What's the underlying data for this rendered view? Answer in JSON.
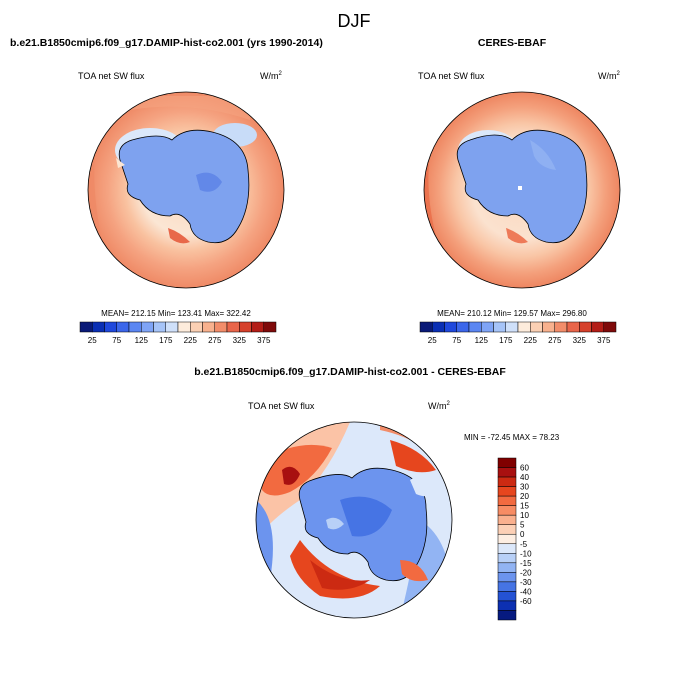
{
  "page": {
    "title": "DJF"
  },
  "chart_data": [
    {
      "type": "heatmap",
      "subtitle": "b.e21.B1850cmip6.f09_g17.DAMIP-hist-co2.001 (yrs 1990-2014)",
      "left_label": "TOA net SW flux",
      "units": "W/m",
      "units_sup": "2",
      "stats": {
        "mean": "212.15",
        "min": "123.41",
        "max": "322.42"
      },
      "stats_text": "MEAN= 212.15  Min= 123.41  Max= 322.42",
      "colorbar": {
        "orientation": "horizontal",
        "tick_labels": [
          "25",
          "75",
          "125",
          "175",
          "225",
          "275",
          "325",
          "375"
        ],
        "colors": [
          "#0a1a78",
          "#0a2fb4",
          "#1f48dc",
          "#3b66ea",
          "#5b86f2",
          "#7fa4f6",
          "#a6c4f8",
          "#cfe0fa",
          "#fdecdc",
          "#fbd0b4",
          "#f8b18e",
          "#f28d6a",
          "#e9654a",
          "#d6412c",
          "#b31d17",
          "#7f0a0a"
        ]
      },
      "projection": "south-polar-stereographic"
    },
    {
      "type": "heatmap",
      "subtitle": "CERES-EBAF",
      "left_label": "TOA net SW flux",
      "units": "W/m",
      "units_sup": "2",
      "stats": {
        "mean": "210.12",
        "min": "129.57",
        "max": "296.80"
      },
      "stats_text": "MEAN= 210.12  Min= 129.57  Max= 296.80",
      "colorbar": {
        "orientation": "horizontal",
        "tick_labels": [
          "25",
          "75",
          "125",
          "175",
          "225",
          "275",
          "325",
          "375"
        ],
        "colors": [
          "#0a1a78",
          "#0a2fb4",
          "#1f48dc",
          "#3b66ea",
          "#5b86f2",
          "#7fa4f6",
          "#a6c4f8",
          "#cfe0fa",
          "#fdecdc",
          "#fbd0b4",
          "#f8b18e",
          "#f28d6a",
          "#e9654a",
          "#d6412c",
          "#b31d17",
          "#7f0a0a"
        ]
      },
      "projection": "south-polar-stereographic"
    },
    {
      "type": "heatmap",
      "subtitle": "b.e21.B1850cmip6.f09_g17.DAMIP-hist-co2.001 - CERES-EBAF",
      "left_label": "TOA net SW flux",
      "units": "W/m",
      "units_sup": "2",
      "stats": {
        "min": "-72.45",
        "max": "78.23"
      },
      "stats_text": "MIN = -72.45 MAX =  78.23",
      "colorbar": {
        "orientation": "vertical",
        "tick_labels": [
          "60",
          "40",
          "30",
          "20",
          "15",
          "10",
          "5",
          "0",
          "-5",
          "-10",
          "-15",
          "-20",
          "-30",
          "-40",
          "-60"
        ],
        "colors": [
          "#800000",
          "#a81010",
          "#cc2a12",
          "#e6461e",
          "#f26a40",
          "#f78c64",
          "#fab08e",
          "#fcd0b6",
          "#fdeee2",
          "#dce8fa",
          "#b8d0f7",
          "#92b4f3",
          "#6c94ee",
          "#4674e4",
          "#2452d4",
          "#0c30b2",
          "#061a80"
        ]
      },
      "projection": "south-polar-stereographic"
    }
  ]
}
